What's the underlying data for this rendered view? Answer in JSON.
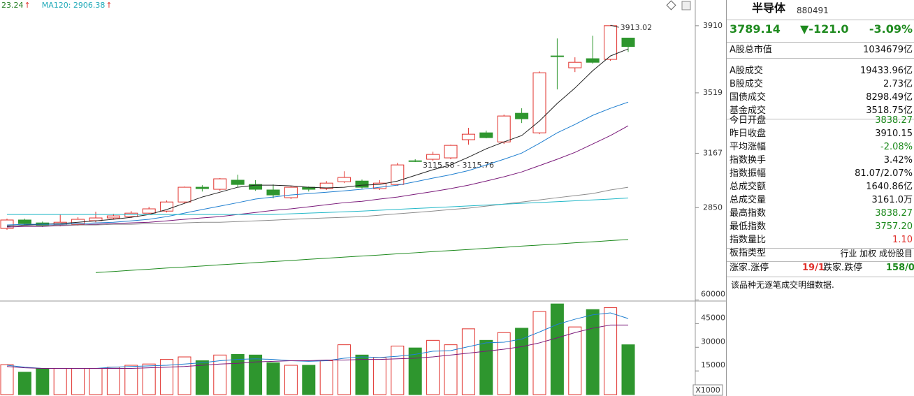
{
  "chart_data": [
    {
      "type": "candlestick",
      "header": [
        {
          "text": "23.24",
          "arrow": "↑",
          "color": "#1e7a1e",
          "arrow_color": "#e0302b"
        },
        {
          "text": "MA120: 2906.38",
          "arrow": "↑",
          "color": "#1fa9b8",
          "arrow_color": "#e0302b"
        }
      ],
      "annotation": "3115.58 - 3115.76",
      "open": [
        2729,
        2778,
        2761,
        2749,
        2753,
        2774,
        2790,
        2798,
        2818,
        2830,
        2883,
        2969,
        2957,
        3010,
        2985,
        2953,
        2908,
        2969,
        2961,
        3001,
        3005,
        2961,
        2985,
        3123,
        3132,
        3140,
        3246,
        3286,
        3233,
        3400,
        3286,
        3734,
        3665,
        3718,
        3714,
        3838.27
      ],
      "high": [
        2786,
        2786,
        2769,
        2810,
        2794,
        2826,
        2814,
        2830,
        2855,
        2892,
        2973,
        2981,
        3022,
        3042,
        3010,
        2985,
        2977,
        2973,
        3005,
        3062,
        3014,
        3010,
        3111,
        3132,
        3176,
        3217,
        3315,
        3299,
        3392,
        3429,
        3644,
        3836,
        3726,
        3852,
        3913.02,
        3838.27
      ],
      "low": [
        2721,
        2749,
        2737,
        2741,
        2745,
        2765,
        2782,
        2790,
        2810,
        2822,
        2875,
        2944,
        2948,
        2969,
        2948,
        2904,
        2900,
        2944,
        2953,
        2993,
        2961,
        2953,
        2977,
        3115.58,
        3123,
        3132,
        3217,
        3254,
        3221,
        3343,
        3278,
        3539,
        3640,
        3689,
        3706,
        3757.2
      ],
      "close": [
        2778,
        2757,
        2745,
        2765,
        2782,
        2790,
        2802,
        2818,
        2843,
        2883,
        2969,
        2961,
        3018,
        2985,
        2957,
        2924,
        2969,
        2957,
        2993,
        3026,
        2969,
        2993,
        3099,
        3119,
        3160,
        3213,
        3278,
        3258,
        3384,
        3368,
        3636,
        3730,
        3697,
        3697,
        3910.15,
        3789.14
      ],
      "up_color": "#e0302b",
      "down_color": "#2e962e",
      "ylim": [
        2310,
        4060
      ],
      "yticks": [
        2850,
        3167,
        3519,
        3910
      ],
      "series": [
        {
          "color": "#222222",
          "values": [
            2741,
            2749,
            2753,
            2757,
            2765,
            2773,
            2782,
            2794,
            2810,
            2839,
            2875,
            2912,
            2940,
            2969,
            2981,
            2981,
            2977,
            2969,
            2965,
            2969,
            2981,
            2985,
            3005,
            3038,
            3071,
            3099,
            3144,
            3193,
            3233,
            3270,
            3355,
            3457,
            3547,
            3648,
            3734,
            3775
          ]
        },
        {
          "color": "#1f7fd0",
          "values": [
            2749,
            2753,
            2753,
            2753,
            2757,
            2761,
            2765,
            2773,
            2782,
            2798,
            2818,
            2839,
            2859,
            2879,
            2900,
            2912,
            2924,
            2932,
            2940,
            2948,
            2957,
            2969,
            2981,
            3001,
            3022,
            3042,
            3066,
            3099,
            3132,
            3168,
            3225,
            3286,
            3335,
            3388,
            3429,
            3465
          ]
        },
        {
          "color": "#7a1a7a",
          "values": [
            2737,
            2741,
            2741,
            2745,
            2749,
            2753,
            2757,
            2761,
            2765,
            2773,
            2782,
            2790,
            2798,
            2810,
            2822,
            2834,
            2843,
            2855,
            2867,
            2879,
            2887,
            2900,
            2912,
            2928,
            2944,
            2961,
            2981,
            3005,
            3030,
            3058,
            3095,
            3132,
            3172,
            3221,
            3270,
            3327
          ]
        },
        {
          "color": "#8c8c8c",
          "values": [
            2745,
            2745,
            2745,
            2749,
            2749,
            2749,
            2753,
            2753,
            2757,
            2757,
            2761,
            2765,
            2765,
            2769,
            2773,
            2777,
            2782,
            2786,
            2790,
            2794,
            2798,
            2806,
            2814,
            2822,
            2830,
            2839,
            2847,
            2859,
            2871,
            2883,
            2895,
            2908,
            2920,
            2932,
            2953,
            2969
          ]
        },
        {
          "color": "#22b8c8",
          "values": [
            2810,
            2810,
            2810,
            2810,
            2810,
            2810,
            2810,
            2810,
            2810,
            2810,
            2810,
            2810,
            2810,
            2810,
            2810,
            2810,
            2814,
            2818,
            2822,
            2826,
            2830,
            2835,
            2840,
            2845,
            2850,
            2855,
            2860,
            2865,
            2870,
            2875,
            2880,
            2885,
            2890,
            2895,
            2900,
            2906.38
          ]
        },
        {
          "color": "#1e8a1e",
          "values": [
            null,
            null,
            null,
            null,
            null,
            2472,
            2478,
            2485,
            2491,
            2498,
            2504,
            2510,
            2517,
            2523,
            2530,
            2536,
            2542,
            2549,
            2555,
            2562,
            2568,
            2574,
            2581,
            2587,
            2594,
            2600,
            2606,
            2613,
            2619,
            2626,
            2632,
            2638,
            2645,
            2651,
            2658,
            2664
          ]
        }
      ]
    },
    {
      "type": "bar",
      "values": [
        19000,
        14200,
        16600,
        16600,
        16600,
        16600,
        17400,
        18600,
        19400,
        22300,
        23900,
        21500,
        25100,
        25500,
        25100,
        20200,
        18600,
        18600,
        21500,
        31600,
        25100,
        23500,
        30800,
        29600,
        34400,
        31600,
        41700,
        34400,
        39300,
        42100,
        52700,
        57500,
        42900,
        53900,
        55100,
        31600
      ],
      "ylim": [
        0,
        62000
      ],
      "yticks": [
        15000,
        30000,
        45000,
        60000
      ],
      "unit": "X1000",
      "series": [
        {
          "color": "#1f7fd0",
          "values": [
            18600,
            17400,
            16600,
            16600,
            16600,
            16600,
            17400,
            17800,
            18200,
            18600,
            19400,
            20200,
            21500,
            22300,
            22700,
            22300,
            21500,
            21100,
            21500,
            23100,
            23900,
            23500,
            24300,
            25500,
            27500,
            27900,
            30400,
            32800,
            33200,
            35200,
            39700,
            44500,
            47800,
            50600,
            51800,
            48200
          ]
        },
        {
          "color": "#7a1a7a",
          "values": [
            17800,
            17000,
            16600,
            16600,
            16600,
            16600,
            16600,
            16600,
            17000,
            17400,
            17800,
            18600,
            19400,
            19800,
            20700,
            21100,
            21500,
            21500,
            21900,
            21900,
            22300,
            22300,
            22700,
            23100,
            23900,
            25100,
            26300,
            27500,
            28800,
            30400,
            32800,
            36000,
            39300,
            42100,
            44100,
            44100
          ]
        }
      ]
    }
  ],
  "panel": {
    "title": "半导体",
    "code": "880491",
    "price": "3789.14",
    "change": "▼-121.0",
    "change_pct": "-3.09%",
    "quote_color": "#1e8a1e",
    "rows": [
      {
        "label": "A股总市值",
        "value": "1034679亿"
      },
      {
        "label": "A股成交",
        "value": "19433.96亿"
      },
      {
        "label": "B股成交",
        "value": "2.73亿"
      },
      {
        "label": "国债成交",
        "value": "8298.49亿"
      },
      {
        "label": "基金成交",
        "value": "3518.75亿"
      },
      {
        "label": "今日开盘",
        "value": "3838.27",
        "color": "#1e8a1e"
      },
      {
        "label": "昨日收盘",
        "value": "3910.15"
      },
      {
        "label": "平均涨幅",
        "value": "-2.08%",
        "color": "#1e8a1e"
      },
      {
        "label": "指数换手",
        "value": "3.42%"
      },
      {
        "label": "指数振幅",
        "value": "81.07/2.07%"
      },
      {
        "label": "总成交额",
        "value": "1640.86亿"
      },
      {
        "label": "总成交量",
        "value": "3161.0万"
      },
      {
        "label": "最高指数",
        "value": "3838.27",
        "color": "#1e8a1e"
      },
      {
        "label": "最低指数",
        "value": "3757.20",
        "color": "#1e8a1e"
      },
      {
        "label": "指数量比",
        "value": "1.10",
        "color": "#e0302b"
      },
      {
        "label": "板指类型",
        "value": "行业 加权 成份股目"
      }
    ],
    "breadth": [
      {
        "text": "涨家.涨停"
      },
      {
        "text": "19/1",
        "color": "#e0302b"
      },
      {
        "text": "跌家.跌停"
      },
      {
        "text": "158/0",
        "color": "#1e8a1e"
      }
    ],
    "note": "该品种无逐笔成交明细数据."
  }
}
